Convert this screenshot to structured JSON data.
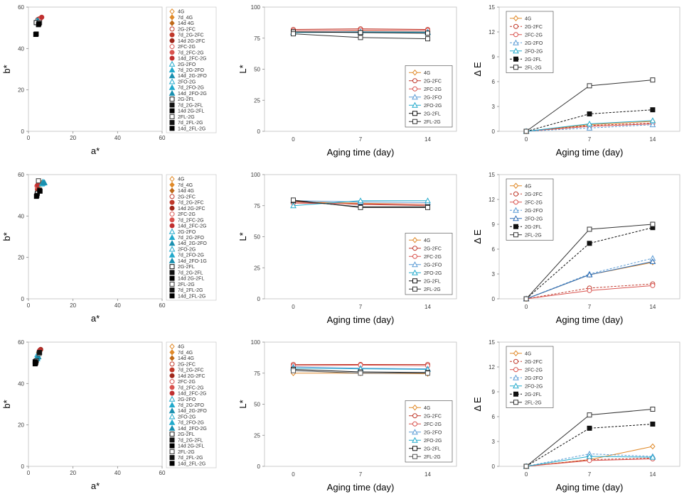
{
  "chart_data": [
    {
      "id": "r1_ab",
      "type": "scatter",
      "xlabel": "a*",
      "ylabel": "b*",
      "xlim": [
        0,
        60
      ],
      "ylim": [
        0,
        60
      ],
      "xticks": [
        "0",
        "20",
        "40",
        "60"
      ],
      "yticks": [
        "0",
        "20",
        "40",
        "60"
      ],
      "legend": [
        "4G",
        "7d_4G",
        "14d 4G",
        "2G-2FC",
        "7d_2G-2FC",
        "14d 2G-2FC",
        "2FC-2G",
        "7d_2FC-2G",
        "14d_2FC-2G",
        "2G-2FO",
        "7d_2G-2FO",
        "14d_2G-2FO",
        "2FO-2G",
        "7d_2FO-2G",
        "14d_2FO-2G",
        "2G-2FL",
        "7d_2G-2FL",
        "14d 2G-2FL",
        "2FL-2G",
        "7d_2FL-2G",
        "14d_2FL-2G"
      ],
      "points": [
        [
          4.8,
          53.5
        ],
        [
          5.0,
          54.2
        ],
        [
          5.5,
          54.8
        ],
        [
          4.5,
          53.8
        ],
        [
          4.2,
          54.0
        ],
        [
          4.8,
          54.3
        ],
        [
          5.5,
          54.6
        ],
        [
          5.8,
          55.0
        ],
        [
          6.0,
          55.1
        ],
        [
          3.8,
          53.5
        ],
        [
          4.0,
          52.8
        ],
        [
          4.2,
          53.2
        ],
        [
          3.9,
          52.5
        ],
        [
          4.1,
          52.9
        ],
        [
          4.3,
          53.4
        ],
        [
          3.5,
          52.5
        ],
        [
          3.5,
          47.0
        ],
        [
          3.3,
          46.8
        ],
        [
          5.0,
          52.5
        ],
        [
          4.5,
          51.5
        ],
        [
          4.7,
          52.0
        ]
      ]
    },
    {
      "id": "r1_L",
      "type": "line",
      "xlabel": "Aging time (day)",
      "ylabel": "L*",
      "ylim": [
        0,
        100
      ],
      "categories": [
        "0",
        "7",
        "14"
      ],
      "yticks": [
        "0",
        "25",
        "50",
        "75",
        "100"
      ],
      "legend_position": "bottom-right",
      "series": [
        {
          "name": "4G",
          "values": [
            80,
            80.5,
            80.2
          ],
          "color": "#e08a2a",
          "marker": "diamond"
        },
        {
          "name": "2G-2FC",
          "values": [
            82,
            82.5,
            82
          ],
          "color": "#c0392b",
          "marker": "circle"
        },
        {
          "name": "2FC-2G",
          "values": [
            81,
            81.5,
            81.2
          ],
          "color": "#d9534f",
          "marker": "circle"
        },
        {
          "name": "2G-2FO",
          "values": [
            80,
            80.2,
            80
          ],
          "color": "#5b9bd5",
          "marker": "triangle"
        },
        {
          "name": "2FO-2G",
          "values": [
            79.5,
            79.8,
            79.5
          ],
          "color": "#22aacc",
          "marker": "triangle"
        },
        {
          "name": "2G-2FL",
          "values": [
            80,
            79.5,
            79
          ],
          "color": "#111111",
          "marker": "square"
        },
        {
          "name": "2FL-2G",
          "values": [
            78.5,
            75.5,
            74.5
          ],
          "color": "#333333",
          "marker": "square"
        }
      ]
    },
    {
      "id": "r1_dE",
      "type": "line",
      "xlabel": "Aging time (day)",
      "ylabel": "Δ E",
      "ylim": [
        0,
        15
      ],
      "categories": [
        "0",
        "7",
        "14"
      ],
      "yticks": [
        "0",
        "3",
        "6",
        "9",
        "12",
        "15"
      ],
      "legend_position": "top-left",
      "series": [
        {
          "name": "4G",
          "values": [
            0,
            0.8,
            1.2
          ],
          "color": "#e08a2a",
          "marker": "diamond"
        },
        {
          "name": "2G-2FC",
          "values": [
            0,
            0.7,
            1.0
          ],
          "color": "#c0392b",
          "marker": "circle",
          "dashed": true
        },
        {
          "name": "2FC-2G",
          "values": [
            0,
            0.6,
            0.9
          ],
          "color": "#d9534f",
          "marker": "circle"
        },
        {
          "name": "2G-2FO",
          "values": [
            0,
            0.4,
            0.8
          ],
          "color": "#5b9bd5",
          "marker": "triangle",
          "dashed": true
        },
        {
          "name": "2FO-2G",
          "values": [
            0,
            0.9,
            1.3
          ],
          "color": "#22aacc",
          "marker": "triangle"
        },
        {
          "name": "2G-2FL",
          "values": [
            0,
            2.1,
            2.6
          ],
          "color": "#111111",
          "marker": "square",
          "dashed": true
        },
        {
          "name": "2FL-2G",
          "values": [
            0,
            5.5,
            6.2
          ],
          "color": "#333333",
          "marker": "square"
        }
      ]
    },
    {
      "id": "r2_ab",
      "type": "scatter",
      "xlabel": "a*",
      "ylabel": "b*",
      "xlim": [
        0,
        60
      ],
      "ylim": [
        0,
        60
      ],
      "xticks": [
        "0",
        "20",
        "40",
        "60"
      ],
      "yticks": [
        "0",
        "20",
        "40",
        "60"
      ],
      "legend": [
        "4G",
        "7d_4G",
        "14d 4G",
        "2G-2FC",
        "7d_2G-2FC",
        "14d 2G-2FC",
        "2FC-2G",
        "7d_2FC-2G",
        "14d_2FC-2G",
        "2G-2FO",
        "7d_2G-2FO",
        "14d_2G-2FO",
        "2FO-2G",
        "7d_2FO-2G",
        "14d_2FO-1G",
        "2G-2FL",
        "7d_2G-2FL",
        "14d 2G-2FL",
        "2FL-2G",
        "7d_2FL-2G",
        "14d_2FL-2G"
      ],
      "points": [
        [
          5.0,
          55.0
        ],
        [
          5.5,
          55.5
        ],
        [
          6.0,
          56.0
        ],
        [
          4.0,
          53.0
        ],
        [
          4.2,
          52.5
        ],
        [
          4.5,
          52.0
        ],
        [
          3.8,
          54.5
        ],
        [
          4.0,
          54.8
        ],
        [
          4.2,
          55.0
        ],
        [
          6.5,
          56.5
        ],
        [
          7.0,
          56.0
        ],
        [
          7.2,
          56.2
        ],
        [
          6.0,
          55.5
        ],
        [
          6.3,
          55.8
        ],
        [
          6.6,
          56.0
        ],
        [
          4.0,
          51.0
        ],
        [
          3.8,
          50.0
        ],
        [
          3.6,
          49.5
        ],
        [
          4.5,
          57.0
        ],
        [
          5.0,
          52.5
        ],
        [
          5.2,
          52.0
        ]
      ]
    },
    {
      "id": "r2_L",
      "type": "line",
      "xlabel": "Aging time (day)",
      "ylabel": "L*",
      "ylim": [
        0,
        100
      ],
      "categories": [
        "0",
        "7",
        "14"
      ],
      "yticks": [
        "0",
        "25",
        "50",
        "75",
        "100"
      ],
      "legend_position": "bottom-right",
      "series": [
        {
          "name": "4G",
          "values": [
            78,
            77,
            76
          ],
          "color": "#e08a2a",
          "marker": "diamond"
        },
        {
          "name": "2G-2FC",
          "values": [
            78,
            76,
            75
          ],
          "color": "#c0392b",
          "marker": "circle"
        },
        {
          "name": "2FC-2G",
          "values": [
            77,
            76.5,
            76
          ],
          "color": "#d9534f",
          "marker": "circle"
        },
        {
          "name": "2G-2FO",
          "values": [
            79,
            78,
            77.5
          ],
          "color": "#5b9bd5",
          "marker": "triangle"
        },
        {
          "name": "2FO-2G",
          "values": [
            75,
            79,
            79
          ],
          "color": "#22aacc",
          "marker": "triangle"
        },
        {
          "name": "2G-2FL",
          "values": [
            79,
            74,
            74
          ],
          "color": "#111111",
          "marker": "square"
        },
        {
          "name": "2FL-2G",
          "values": [
            79.5,
            73.5,
            73.5
          ],
          "color": "#333333",
          "marker": "square"
        }
      ]
    },
    {
      "id": "r2_dE",
      "type": "line",
      "xlabel": "Aging time (day)",
      "ylabel": "Δ E",
      "ylim": [
        0,
        15
      ],
      "categories": [
        "0",
        "7",
        "14"
      ],
      "yticks": [
        "0",
        "3",
        "6",
        "9",
        "12",
        "15"
      ],
      "legend_position": "top-left",
      "series": [
        {
          "name": "4G",
          "values": [
            0,
            2.9,
            4.4
          ],
          "color": "#e08a2a",
          "marker": "diamond"
        },
        {
          "name": "2G-2FC",
          "values": [
            0,
            1.3,
            1.8
          ],
          "color": "#c0392b",
          "marker": "circle",
          "dashed": true
        },
        {
          "name": "2FC-2G",
          "values": [
            0,
            1.0,
            1.6
          ],
          "color": "#d9534f",
          "marker": "circle"
        },
        {
          "name": "2G-2FO",
          "values": [
            0,
            3.0,
            4.9
          ],
          "color": "#5b9bd5",
          "marker": "triangle",
          "dashed": true
        },
        {
          "name": "2FO-2G",
          "values": [
            0,
            2.9,
            4.5
          ],
          "color": "#2e6db5",
          "marker": "triangle"
        },
        {
          "name": "2G-2FL",
          "values": [
            0,
            6.7,
            8.6
          ],
          "color": "#111111",
          "marker": "square",
          "dashed": true
        },
        {
          "name": "2FL-2G",
          "values": [
            0,
            8.4,
            9.0
          ],
          "color": "#333333",
          "marker": "square"
        }
      ]
    },
    {
      "id": "r3_ab",
      "type": "scatter",
      "xlabel": "a*",
      "ylabel": "b*",
      "xlim": [
        0,
        60
      ],
      "ylim": [
        0,
        60
      ],
      "xticks": [
        "0",
        "20",
        "40",
        "60"
      ],
      "yticks": [
        "0",
        "20",
        "40",
        "60"
      ],
      "legend": [
        "4G",
        "7d_4G",
        "14d 4G",
        "2G-2FC",
        "7d_2G-2FC",
        "14d 2G-2FC",
        "2FC-2G",
        "7d_2FC-2G",
        "14d_2FC-2G",
        "2G-2FO",
        "7d_2G-2FO",
        "14d_2G-2FO",
        "2FO-2G",
        "7d_2FO-2G",
        "14d_2FO-2G",
        "2G-2FL",
        "7d_2G-2FL",
        "14d 2G-2FL",
        "2FL-2G",
        "7d_2FL-2G",
        "14d_2FL-2G"
      ],
      "points": [
        [
          4.5,
          55.0
        ],
        [
          5.0,
          55.5
        ],
        [
          5.5,
          56.0
        ],
        [
          5.0,
          56.0
        ],
        [
          5.2,
          56.2
        ],
        [
          5.5,
          56.5
        ],
        [
          4.8,
          55.5
        ],
        [
          5.0,
          55.8
        ],
        [
          5.2,
          56.0
        ],
        [
          4.0,
          54.0
        ],
        [
          4.2,
          53.5
        ],
        [
          4.5,
          53.0
        ],
        [
          3.8,
          52.5
        ],
        [
          4.0,
          52.0
        ],
        [
          4.2,
          52.8
        ],
        [
          3.5,
          51.0
        ],
        [
          3.3,
          50.0
        ],
        [
          3.0,
          49.5
        ],
        [
          4.8,
          54.5
        ],
        [
          5.0,
          55.0
        ],
        [
          3.0,
          50.5
        ]
      ]
    },
    {
      "id": "r3_L",
      "type": "line",
      "xlabel": "Aging time (day)",
      "ylabel": "L*",
      "ylim": [
        0,
        100
      ],
      "categories": [
        "0",
        "7",
        "14"
      ],
      "yticks": [
        "0",
        "25",
        "50",
        "75",
        "100"
      ],
      "legend_position": "bottom-right",
      "series": [
        {
          "name": "4G",
          "values": [
            75,
            75,
            74.5
          ],
          "color": "#e08a2a",
          "marker": "diamond"
        },
        {
          "name": "2G-2FC",
          "values": [
            82,
            82,
            82
          ],
          "color": "#c0392b",
          "marker": "circle"
        },
        {
          "name": "2FC-2G",
          "values": [
            81,
            81.5,
            81
          ],
          "color": "#d9534f",
          "marker": "circle"
        },
        {
          "name": "2G-2FO",
          "values": [
            80,
            79,
            78.5
          ],
          "color": "#5b9bd5",
          "marker": "triangle"
        },
        {
          "name": "2FO-2G",
          "values": [
            79,
            78.5,
            78
          ],
          "color": "#22aacc",
          "marker": "triangle"
        },
        {
          "name": "2G-2FL",
          "values": [
            78,
            76,
            75.5
          ],
          "color": "#111111",
          "marker": "square"
        },
        {
          "name": "2FL-2G",
          "values": [
            77,
            75,
            75
          ],
          "color": "#555555",
          "marker": "square"
        }
      ]
    },
    {
      "id": "r3_dE",
      "type": "line",
      "xlabel": "Aging time (day)",
      "ylabel": "Δ E",
      "ylim": [
        0,
        15
      ],
      "categories": [
        "0",
        "7",
        "14"
      ],
      "yticks": [
        "0",
        "3",
        "6",
        "9",
        "12",
        "15"
      ],
      "legend_position": "top-left",
      "series": [
        {
          "name": "4G",
          "values": [
            0,
            0.8,
            2.4
          ],
          "color": "#e08a2a",
          "marker": "diamond"
        },
        {
          "name": "2G-2FC",
          "values": [
            0,
            0.8,
            1.0
          ],
          "color": "#c0392b",
          "marker": "circle",
          "dashed": true
        },
        {
          "name": "2FC-2G",
          "values": [
            0,
            0.7,
            0.9
          ],
          "color": "#d9534f",
          "marker": "circle"
        },
        {
          "name": "2G-2FO",
          "values": [
            0,
            1.5,
            1.2
          ],
          "color": "#5b9bd5",
          "marker": "triangle",
          "dashed": true
        },
        {
          "name": "2FO-2G",
          "values": [
            0,
            1.2,
            1.1
          ],
          "color": "#22aacc",
          "marker": "triangle"
        },
        {
          "name": "2G-2FL",
          "values": [
            0,
            4.6,
            5.1
          ],
          "color": "#111111",
          "marker": "square",
          "dashed": true
        },
        {
          "name": "2FL-2G",
          "values": [
            0,
            6.2,
            6.9
          ],
          "color": "#333333",
          "marker": "square"
        }
      ]
    }
  ]
}
